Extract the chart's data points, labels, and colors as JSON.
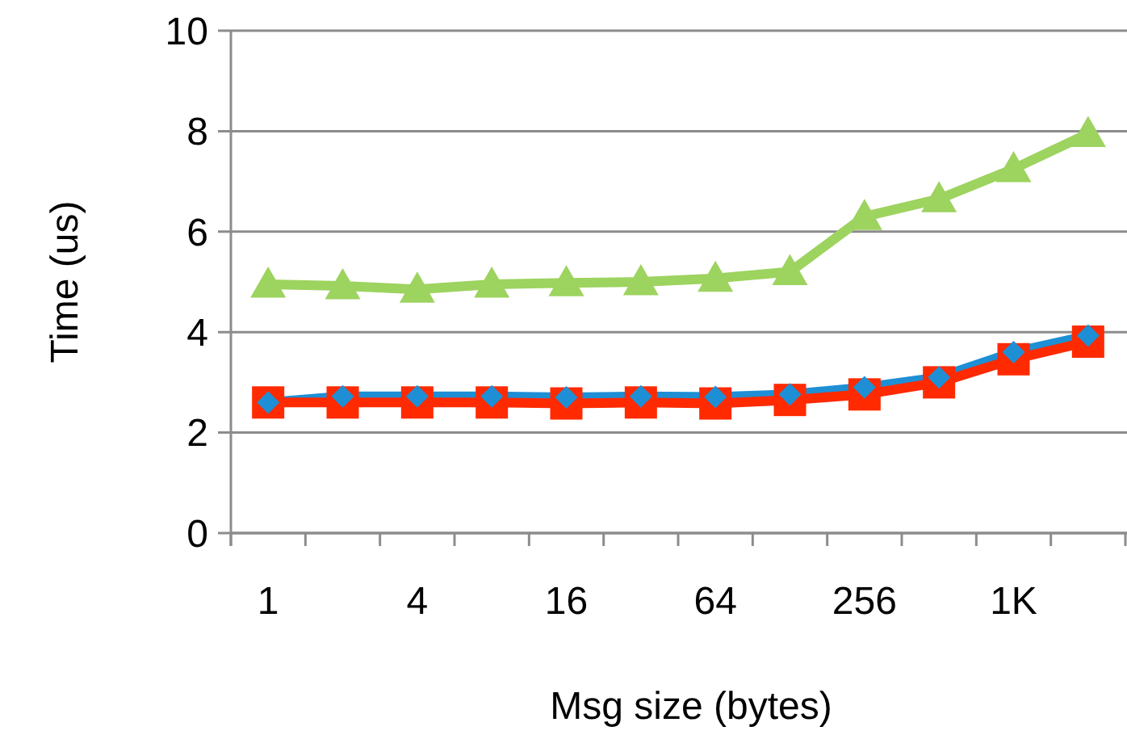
{
  "chart_data": {
    "type": "line",
    "xlabel": "Msg size (bytes)",
    "ylabel": "Time (us)",
    "categories": [
      "1",
      null,
      "4",
      null,
      "16",
      null,
      "64",
      null,
      "256",
      null,
      "1K",
      null
    ],
    "series": [
      {
        "color": "#9dd35f",
        "marker": "triangle",
        "values": [
          4.95,
          4.92,
          4.85,
          4.95,
          4.98,
          5.0,
          5.07,
          5.2,
          6.3,
          6.65,
          7.25,
          7.95
        ]
      },
      {
        "color": "#1e8fd5",
        "marker": "diamond",
        "values": [
          2.6,
          2.72,
          2.72,
          2.72,
          2.7,
          2.72,
          2.71,
          2.76,
          2.9,
          3.1,
          3.6,
          3.93
        ]
      },
      {
        "color": "#ff2a00",
        "marker": "square",
        "values": [
          2.6,
          2.6,
          2.6,
          2.6,
          2.58,
          2.6,
          2.58,
          2.65,
          2.76,
          3.0,
          3.46,
          3.81
        ]
      }
    ],
    "ylim": [
      0,
      10
    ],
    "yticks": [
      0,
      2,
      4,
      6,
      8,
      10
    ],
    "grid": "y"
  }
}
